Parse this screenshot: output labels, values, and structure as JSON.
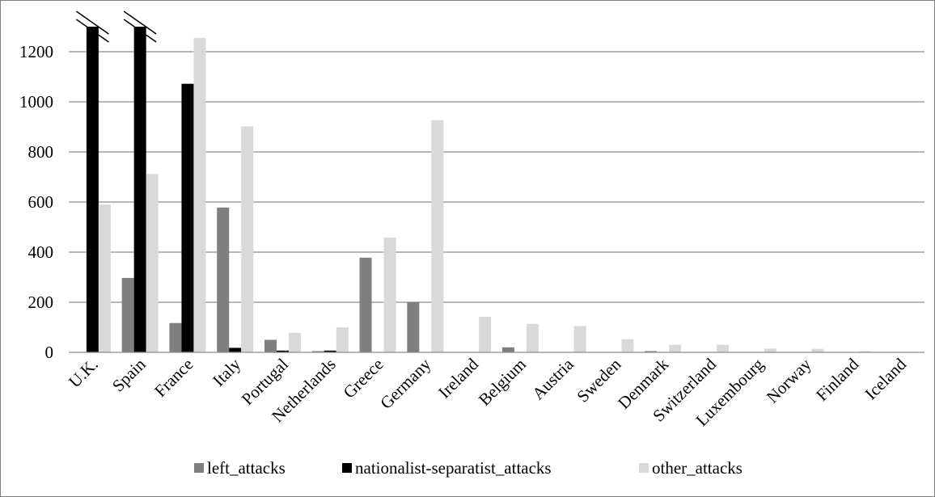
{
  "chart_data": {
    "type": "bar",
    "title": "",
    "xlabel": "",
    "ylabel": "",
    "ylim": [
      0,
      1300
    ],
    "yticks": [
      0,
      200,
      400,
      600,
      800,
      1000,
      1200
    ],
    "grid": true,
    "legend_position": "bottom",
    "axis_break_categories": [
      "U.K.",
      "Spain"
    ],
    "categories": [
      "U.K.",
      "Spain",
      "France",
      "Italy",
      "Portugal",
      "Netherlands",
      "Greece",
      "Germany",
      "Ireland",
      "Belgium",
      "Austria",
      "Sweden",
      "Denmark",
      "Switzerland",
      "Luxembourg",
      "Norway",
      "Finland",
      "Iceland"
    ],
    "series": [
      {
        "name": "left_attacks",
        "color": "#7f7f7f",
        "values": [
          0,
          297,
          117,
          578,
          50,
          5,
          378,
          201,
          0,
          20,
          0,
          0,
          5,
          0,
          0,
          0,
          0,
          0
        ]
      },
      {
        "name": "nationalist-separatist_attacks",
        "color": "#000000",
        "values": [
          1300,
          1300,
          1072,
          18,
          7,
          7,
          0,
          0,
          0,
          0,
          0,
          0,
          0,
          0,
          0,
          0,
          0,
          0
        ]
      },
      {
        "name": "other_attacks",
        "color": "#d9d9d9",
        "values": [
          590,
          712,
          1255,
          902,
          78,
          100,
          458,
          927,
          142,
          114,
          105,
          52,
          30,
          30,
          15,
          14,
          5,
          0
        ]
      }
    ]
  }
}
